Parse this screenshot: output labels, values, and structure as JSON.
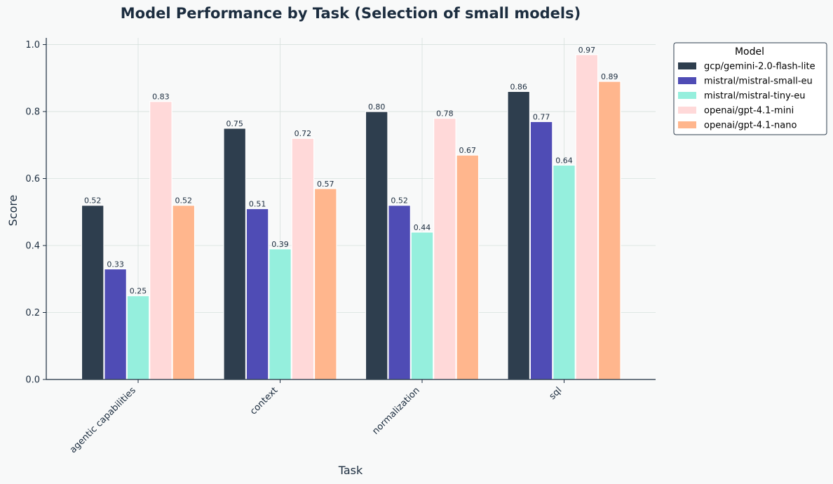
{
  "chart_data": {
    "type": "bar",
    "title": "Model Performance by Task (Selection of small models)",
    "xlabel": "Task",
    "ylabel": "Score",
    "ylim": [
      0,
      1.02
    ],
    "yticks": [
      "0.0",
      "0.2",
      "0.4",
      "0.6",
      "0.8",
      "1.0"
    ],
    "grid": true,
    "legend_title": "Model",
    "legend_position": "upper-right-outside",
    "categories": [
      "agentic capabilities",
      "context",
      "normalization",
      "sql"
    ],
    "series": [
      {
        "name": "gcp/gemini-2.0-flash-lite",
        "color": "#2e3e4e",
        "values": [
          0.52,
          0.75,
          0.8,
          0.86
        ],
        "labels": [
          "0.52",
          "0.75",
          "0.80",
          "0.86"
        ]
      },
      {
        "name": "mistral/mistral-small-eu",
        "color": "#4f4cb5",
        "values": [
          0.33,
          0.51,
          0.52,
          0.77
        ],
        "labels": [
          "0.33",
          "0.51",
          "0.52",
          "0.77"
        ]
      },
      {
        "name": "mistral/mistral-tiny-eu",
        "color": "#95efdd",
        "values": [
          0.25,
          0.39,
          0.44,
          0.64
        ],
        "labels": [
          "0.25",
          "0.39",
          "0.44",
          "0.64"
        ]
      },
      {
        "name": "openai/gpt-4.1-mini",
        "color": "#ffd9d9",
        "values": [
          0.83,
          0.72,
          0.78,
          0.97
        ],
        "labels": [
          "0.83",
          "0.72",
          "0.78",
          "0.97"
        ]
      },
      {
        "name": "openai/gpt-4.1-nano",
        "color": "#ffb68d",
        "values": [
          0.52,
          0.57,
          0.67,
          0.89
        ],
        "labels": [
          "0.52",
          "0.57",
          "0.67",
          "0.89"
        ]
      }
    ]
  }
}
